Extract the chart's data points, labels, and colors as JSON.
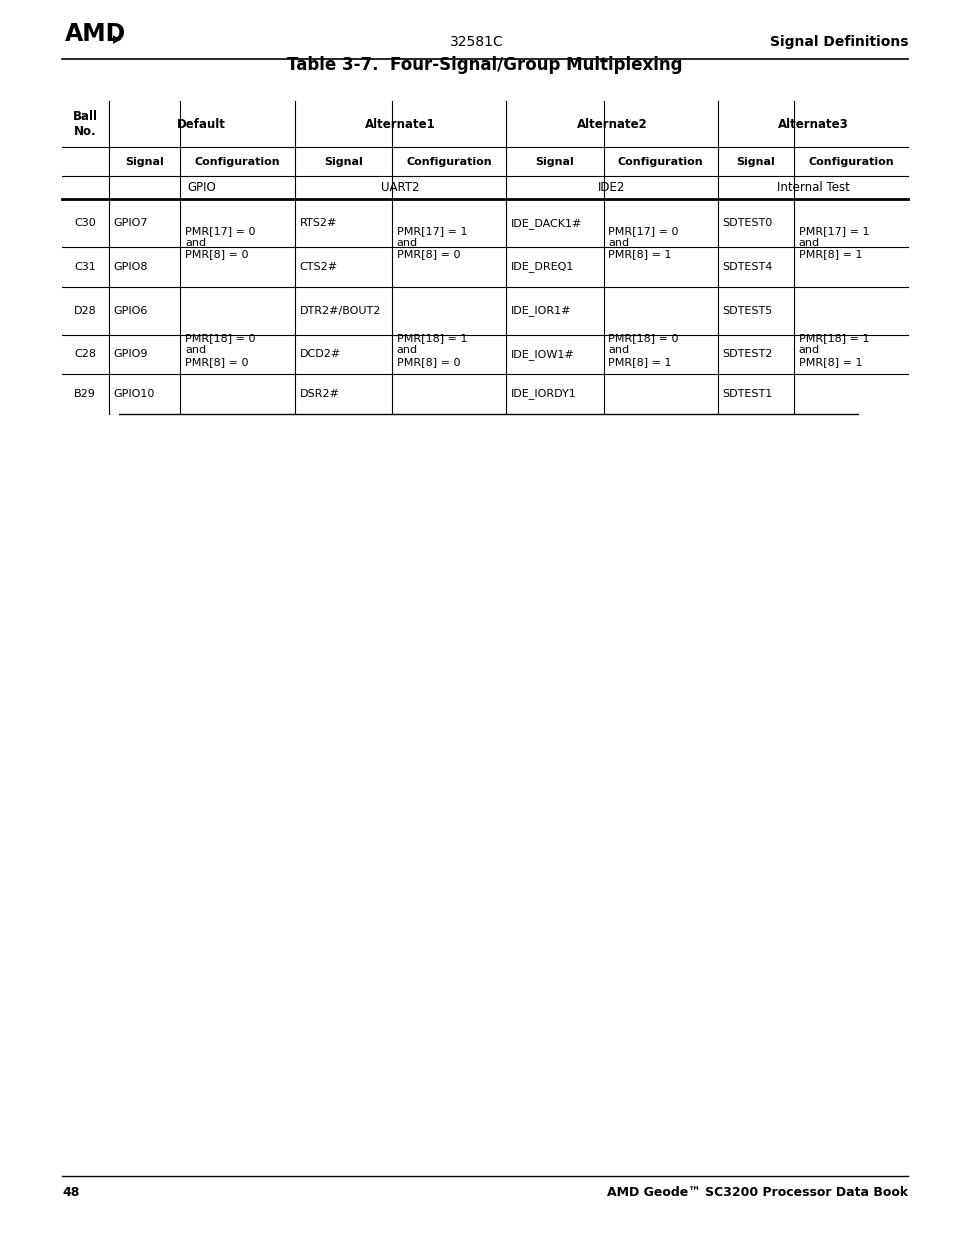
{
  "title": "Table 3-7.  Four-Signal/Group Multiplexing",
  "page_number": "48",
  "footer_right": "AMD Geode™ SC3200 Processor Data Book",
  "header_center": "32581C",
  "header_right": "Signal Definitions"
}
